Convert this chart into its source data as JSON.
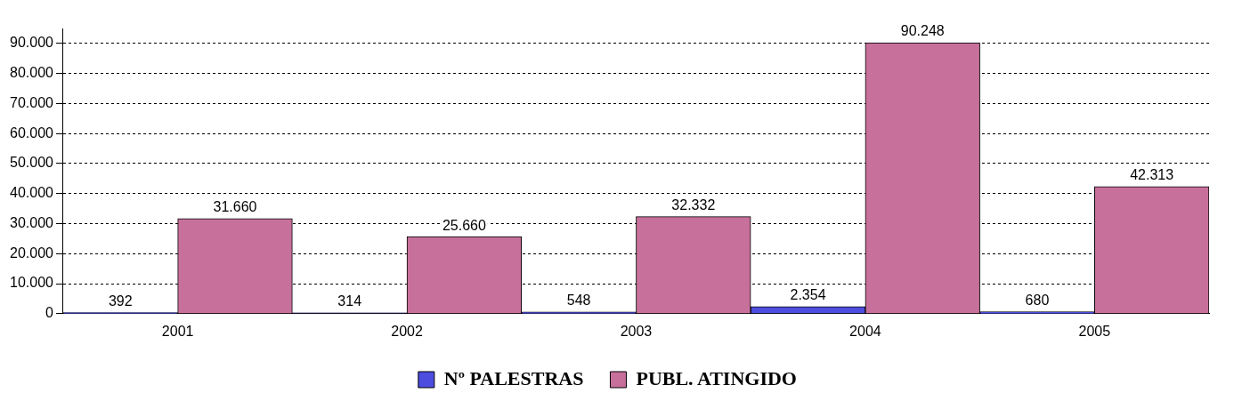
{
  "chart_data": {
    "type": "bar",
    "categories": [
      "2001",
      "2002",
      "2003",
      "2004",
      "2005"
    ],
    "series": [
      {
        "name": "Nº PALESTRAS",
        "color": "#4d4de0",
        "values": [
          392,
          314,
          548,
          2354,
          680
        ],
        "value_labels": [
          "392",
          "314",
          "548",
          "2.354",
          "680"
        ]
      },
      {
        "name": "PUBL. ATINGIDO",
        "color": "#c8709c",
        "values": [
          31660,
          25660,
          32332,
          90248,
          42313
        ],
        "value_labels": [
          "31.660",
          "25.660",
          "32.332",
          "90.248",
          "42.313"
        ]
      }
    ],
    "ylim": [
      0,
      95000
    ],
    "yticks": [
      0,
      {
        "value": 10000,
        "label": "10.000"
      },
      {
        "value": 20000,
        "label": "20.000"
      },
      {
        "value": 30000,
        "label": "30.000"
      },
      {
        "value": 40000,
        "label": "40.000"
      },
      {
        "value": 50000,
        "label": "50.000"
      },
      {
        "value": 60000,
        "label": "60.000"
      },
      {
        "value": 70000,
        "label": "70.000"
      },
      {
        "value": 80000,
        "label": "80.000"
      },
      {
        "value": 90000,
        "label": "90.000"
      }
    ],
    "grid": "y",
    "legend": "bottom"
  }
}
